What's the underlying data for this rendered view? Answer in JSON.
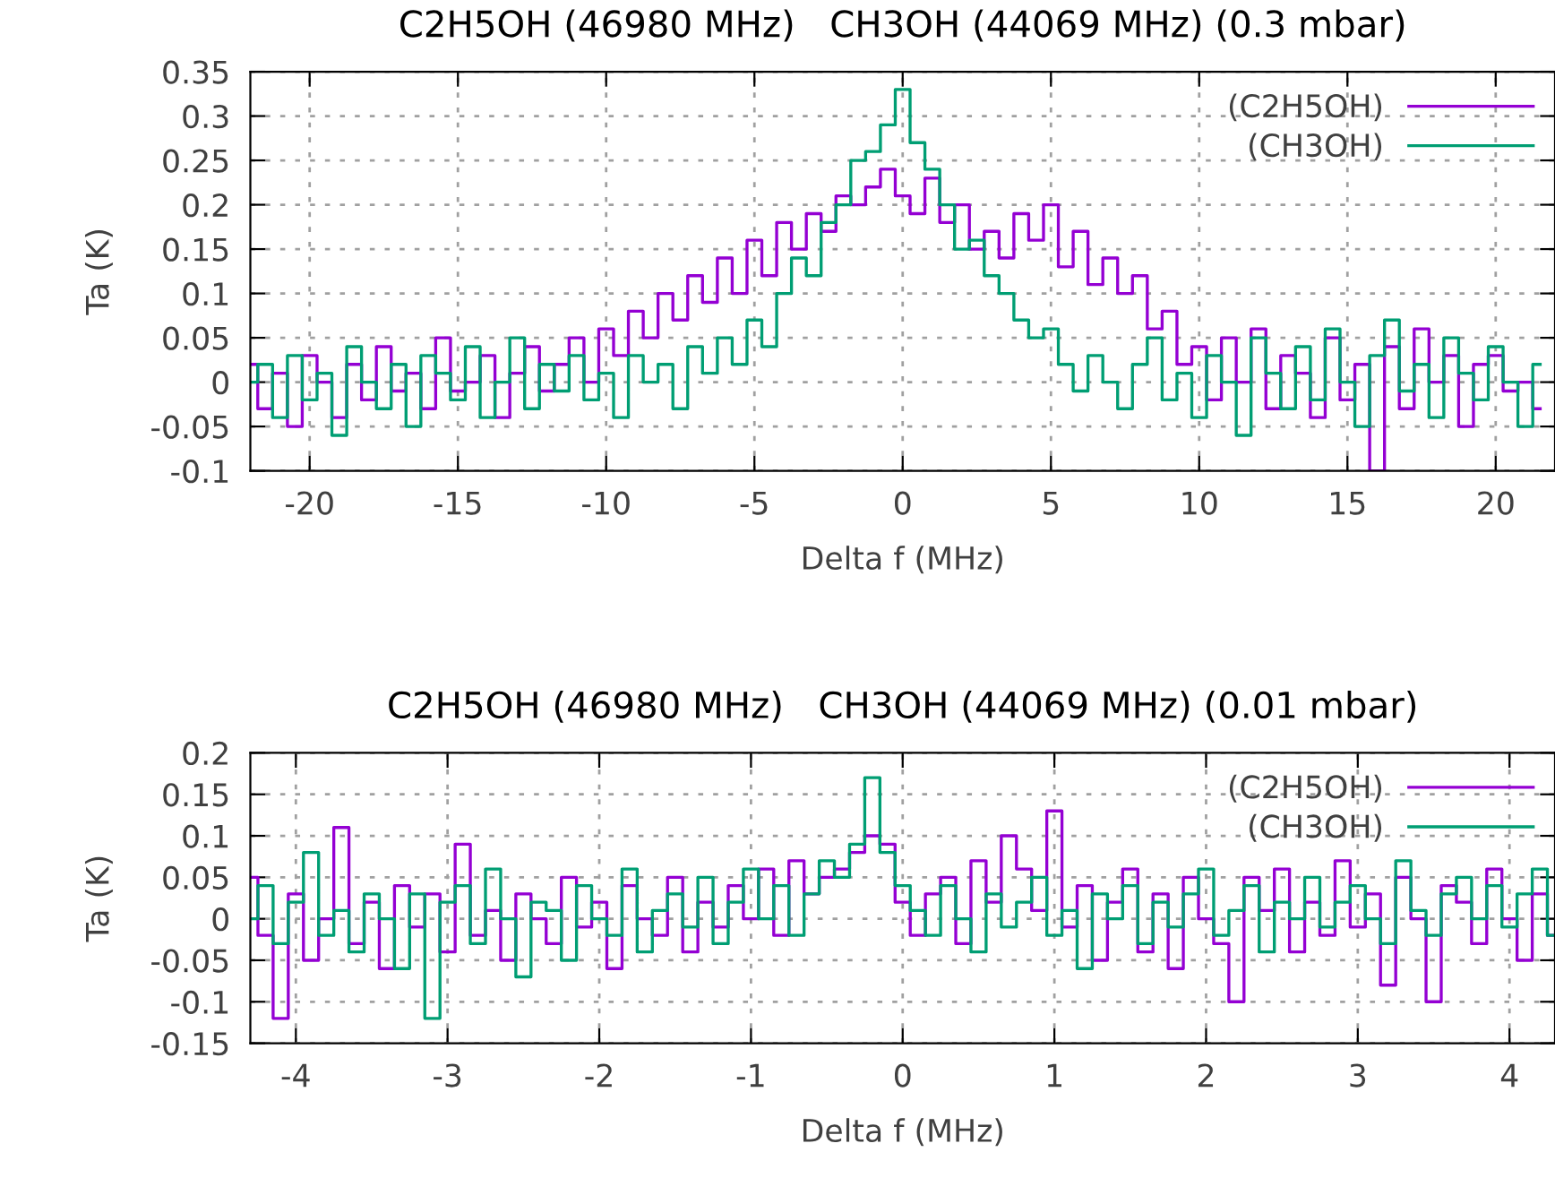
{
  "chart_data": [
    {
      "type": "step",
      "title": "C2H5OH (46980 MHz)   CH3OH (44069 MHz) (0.3 mbar)",
      "xlabel": "Delta f (MHz)",
      "ylabel": "Ta (K)",
      "x": [
        -22,
        -21.5,
        -21,
        -20.5,
        -20,
        -19.5,
        -19,
        -18.5,
        -18,
        -17.5,
        -17,
        -16.5,
        -16,
        -15.5,
        -15,
        -14.5,
        -14,
        -13.5,
        -13,
        -12.5,
        -12,
        -11.5,
        -11,
        -10.5,
        -10,
        -9.5,
        -9,
        -8.5,
        -8,
        -7.5,
        -7,
        -6.5,
        -6,
        -5.5,
        -5,
        -4.5,
        -4,
        -3.5,
        -3,
        -2.5,
        -2,
        -1.5,
        -1,
        -0.5,
        0,
        0.5,
        1,
        1.5,
        2,
        2.5,
        3,
        3.5,
        4,
        4.5,
        5,
        5.5,
        6,
        6.5,
        7,
        7.5,
        8,
        8.5,
        9,
        9.5,
        10,
        10.5,
        11,
        11.5,
        12,
        12.5,
        13,
        13.5,
        14,
        14.5,
        15,
        15.5,
        16,
        16.5,
        17,
        17.5,
        18,
        18.5,
        19,
        19.5,
        20,
        20.5,
        21,
        21.5
      ],
      "series": [
        {
          "name": "(C2H5OH)",
          "color": "#9400d3",
          "values": [
            0.02,
            -0.03,
            0.01,
            -0.05,
            0.03,
            0.0,
            -0.04,
            0.02,
            -0.02,
            0.04,
            -0.01,
            0.01,
            -0.03,
            0.05,
            -0.01,
            0.0,
            0.03,
            -0.04,
            0.01,
            0.04,
            -0.01,
            0.02,
            0.05,
            0.0,
            0.06,
            0.03,
            0.08,
            0.05,
            0.1,
            0.07,
            0.12,
            0.09,
            0.14,
            0.1,
            0.16,
            0.12,
            0.18,
            0.15,
            0.19,
            0.17,
            0.21,
            0.2,
            0.22,
            0.24,
            0.21,
            0.19,
            0.23,
            0.18,
            0.2,
            0.15,
            0.17,
            0.14,
            0.19,
            0.16,
            0.2,
            0.13,
            0.17,
            0.11,
            0.14,
            0.1,
            0.12,
            0.06,
            0.08,
            0.02,
            0.04,
            -0.02,
            0.05,
            0.0,
            0.06,
            -0.03,
            0.03,
            0.01,
            -0.04,
            0.05,
            -0.02,
            0.02,
            -0.1,
            0.04,
            -0.03,
            0.06,
            0.0,
            0.03,
            -0.05,
            0.02,
            0.03,
            -0.01,
            0.0,
            -0.03
          ]
        },
        {
          "name": "(CH3OH)",
          "color": "#009e73",
          "values": [
            0.0,
            0.02,
            -0.04,
            0.03,
            -0.02,
            0.01,
            -0.06,
            0.04,
            0.0,
            -0.03,
            0.02,
            -0.05,
            0.03,
            0.01,
            -0.02,
            0.04,
            -0.04,
            0.0,
            0.05,
            -0.03,
            0.02,
            -0.01,
            0.03,
            -0.02,
            0.01,
            -0.04,
            0.03,
            0.0,
            0.02,
            -0.03,
            0.04,
            0.01,
            0.05,
            0.02,
            0.07,
            0.04,
            0.1,
            0.14,
            0.12,
            0.18,
            0.2,
            0.25,
            0.26,
            0.29,
            0.33,
            0.27,
            0.24,
            0.2,
            0.15,
            0.16,
            0.12,
            0.1,
            0.07,
            0.05,
            0.06,
            0.02,
            -0.01,
            0.03,
            0.0,
            -0.03,
            0.02,
            0.05,
            -0.02,
            0.01,
            -0.04,
            0.03,
            0.0,
            -0.06,
            0.05,
            0.01,
            -0.03,
            0.04,
            -0.02,
            0.06,
            0.0,
            -0.05,
            0.03,
            0.07,
            -0.01,
            0.02,
            -0.04,
            0.05,
            0.01,
            -0.02,
            0.04,
            0.0,
            -0.05,
            0.02
          ]
        }
      ],
      "xlim": [
        -22,
        22
      ],
      "xticks": [
        -20,
        -15,
        -10,
        -5,
        0,
        5,
        10,
        15,
        20
      ],
      "ylim": [
        -0.1,
        0.35
      ],
      "yticks": [
        -0.1,
        -0.05,
        0,
        0.05,
        0.1,
        0.15,
        0.2,
        0.25,
        0.3,
        0.35
      ],
      "grid": true,
      "legend": "top right",
      "line_style": "solid"
    },
    {
      "type": "step",
      "title": "C2H5OH (46980 MHz)   CH3OH (44069 MHz) (0.01 mbar)",
      "xlabel": "Delta f (MHz)",
      "ylabel": "Ta (K)",
      "x": [
        -4.3,
        -4.2,
        -4.1,
        -4,
        -3.9,
        -3.8,
        -3.7,
        -3.6,
        -3.5,
        -3.4,
        -3.3,
        -3.2,
        -3.1,
        -3,
        -2.9,
        -2.8,
        -2.7,
        -2.6,
        -2.5,
        -2.4,
        -2.3,
        -2.2,
        -2.1,
        -2,
        -1.9,
        -1.8,
        -1.7,
        -1.6,
        -1.5,
        -1.4,
        -1.3,
        -1.2,
        -1.1,
        -1,
        -0.9,
        -0.8,
        -0.7,
        -0.6,
        -0.5,
        -0.4,
        -0.3,
        -0.2,
        -0.1,
        0,
        0.1,
        0.2,
        0.3,
        0.4,
        0.5,
        0.6,
        0.7,
        0.8,
        0.9,
        1,
        1.1,
        1.2,
        1.3,
        1.4,
        1.5,
        1.6,
        1.7,
        1.8,
        1.9,
        2,
        2.1,
        2.2,
        2.3,
        2.4,
        2.5,
        2.6,
        2.7,
        2.8,
        2.9,
        3,
        3.1,
        3.2,
        3.3,
        3.4,
        3.5,
        3.6,
        3.7,
        3.8,
        3.9,
        4,
        4.1,
        4.2,
        4.3
      ],
      "series": [
        {
          "name": "(C2H5OH)",
          "color": "#9400d3",
          "values": [
            0.05,
            -0.02,
            -0.12,
            0.03,
            -0.05,
            0.0,
            0.11,
            -0.03,
            0.02,
            -0.06,
            0.04,
            -0.01,
            0.03,
            -0.04,
            0.09,
            -0.02,
            0.01,
            -0.05,
            0.03,
            0.0,
            -0.03,
            0.05,
            -0.01,
            0.02,
            -0.06,
            0.04,
            0.0,
            -0.02,
            0.05,
            -0.04,
            0.02,
            -0.01,
            0.04,
            0.0,
            0.06,
            -0.02,
            0.07,
            0.03,
            0.05,
            0.06,
            0.08,
            0.1,
            0.09,
            0.02,
            -0.02,
            0.03,
            0.05,
            -0.03,
            0.07,
            0.02,
            0.1,
            0.06,
            0.01,
            0.13,
            -0.01,
            0.04,
            -0.05,
            0.02,
            0.06,
            -0.04,
            0.03,
            -0.06,
            0.05,
            0.0,
            -0.03,
            -0.1,
            0.05,
            0.01,
            0.06,
            -0.04,
            0.02,
            -0.02,
            0.07,
            -0.01,
            0.03,
            -0.08,
            0.05,
            0.0,
            -0.1,
            0.04,
            0.02,
            -0.03,
            0.06,
            0.0,
            -0.05,
            0.03,
            -0.02
          ]
        },
        {
          "name": "(CH3OH)",
          "color": "#009e73",
          "values": [
            0.0,
            0.04,
            -0.03,
            0.02,
            0.08,
            -0.02,
            0.01,
            -0.04,
            0.03,
            0.0,
            -0.06,
            0.03,
            -0.12,
            0.02,
            0.04,
            -0.03,
            0.06,
            0.0,
            -0.07,
            0.02,
            0.01,
            -0.05,
            0.04,
            0.0,
            -0.02,
            0.06,
            -0.04,
            0.01,
            0.03,
            -0.01,
            0.05,
            -0.03,
            0.02,
            0.06,
            0.0,
            0.04,
            -0.02,
            0.03,
            0.07,
            0.05,
            0.09,
            0.17,
            0.08,
            0.04,
            0.01,
            -0.02,
            0.04,
            0.0,
            -0.04,
            0.03,
            -0.01,
            0.02,
            0.05,
            -0.02,
            0.01,
            -0.06,
            0.03,
            0.0,
            0.04,
            -0.03,
            0.02,
            -0.01,
            0.03,
            0.06,
            -0.02,
            0.01,
            0.04,
            -0.04,
            0.02,
            0.0,
            0.05,
            -0.01,
            0.02,
            0.04,
            0.0,
            -0.03,
            0.07,
            0.01,
            -0.02,
            0.03,
            0.05,
            0.0,
            0.04,
            -0.01,
            0.03,
            0.06,
            -0.02
          ]
        }
      ],
      "xlim": [
        -4.3,
        4.3
      ],
      "xticks": [
        -4,
        -3,
        -2,
        -1,
        0,
        1,
        2,
        3,
        4
      ],
      "ylim": [
        -0.15,
        0.2
      ],
      "yticks": [
        -0.15,
        -0.1,
        -0.05,
        0,
        0.05,
        0.1,
        0.15,
        0.2
      ],
      "grid": true,
      "legend": "top right",
      "line_style": "solid"
    }
  ]
}
